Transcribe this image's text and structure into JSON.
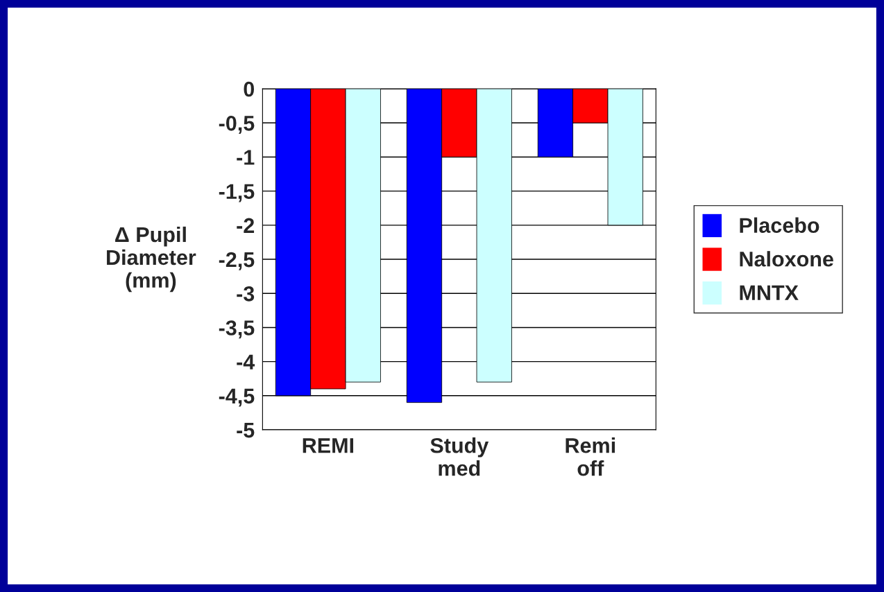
{
  "chart_data": {
    "type": "bar",
    "ylabel": "Δ Pupil\nDiameter\n(mm)",
    "categories": [
      "REMI",
      "Study\nmed",
      "Remi\noff"
    ],
    "series": [
      {
        "name": "Placebo",
        "color": "#0000ff",
        "values": [
          -4.5,
          -4.6,
          -1.0
        ]
      },
      {
        "name": "Naloxone",
        "color": "#ff0000",
        "values": [
          -4.4,
          -1.0,
          -0.5
        ]
      },
      {
        "name": "MNTX",
        "color": "#ccffff",
        "values": [
          -4.3,
          -4.3,
          -2.0
        ]
      }
    ],
    "ylim": [
      -5,
      0
    ],
    "yticks": [
      {
        "value": -5,
        "label": "-5"
      },
      {
        "value": -4.5,
        "label": "-4,5"
      },
      {
        "value": -4,
        "label": "-4"
      },
      {
        "value": -3.5,
        "label": "-3,5"
      },
      {
        "value": -3,
        "label": "-3"
      },
      {
        "value": -2.5,
        "label": "-2,5"
      },
      {
        "value": -2,
        "label": "-2"
      },
      {
        "value": -1.5,
        "label": "-1,5"
      },
      {
        "value": -1,
        "label": "-1"
      },
      {
        "value": -0.5,
        "label": "-0,5"
      },
      {
        "value": 0,
        "label": "0"
      }
    ],
    "grid": "y",
    "legend": "right"
  }
}
